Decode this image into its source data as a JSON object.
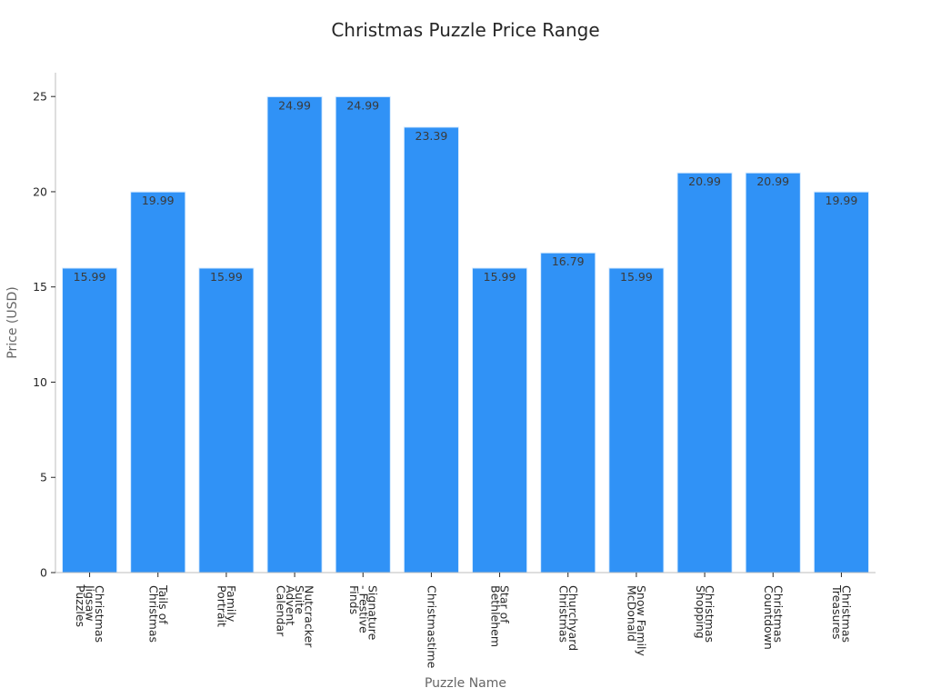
{
  "chart_data": {
    "type": "bar",
    "title": "Christmas Puzzle Price Range",
    "xlabel": "Puzzle Name",
    "ylabel": "Price (USD)",
    "ylim": [
      0,
      26.25
    ],
    "yticks": [
      0,
      5,
      10,
      15,
      20,
      25
    ],
    "grid": false,
    "bar_color": "#3092f6",
    "bar_edge_color": "#d9ecff",
    "categories": [
      [
        "Christmas",
        "Jigsaw",
        "Puzzles"
      ],
      [
        "Tails of",
        "Christmas"
      ],
      [
        "Family",
        "Portrait"
      ],
      [
        "Nutcracker",
        "Suite",
        "Advent",
        "Calendar"
      ],
      [
        "Signature",
        "- Festive",
        "Finds"
      ],
      [
        "Christmastime"
      ],
      [
        "Star of",
        "Bethlehem"
      ],
      [
        "Churchyard",
        "Christmas"
      ],
      [
        "Snow Family",
        "McDonald"
      ],
      [
        "Christmas",
        "Shopping"
      ],
      [
        "Christmas",
        "Countdown"
      ],
      [
        "Christmas",
        "Treasures"
      ]
    ],
    "values": [
      15.99,
      19.99,
      15.99,
      24.99,
      24.99,
      23.39,
      15.99,
      16.79,
      15.99,
      20.99,
      20.99,
      19.99
    ],
    "value_labels": [
      "15.99",
      "19.99",
      "15.99",
      "24.99",
      "24.99",
      "23.39",
      "15.99",
      "16.79",
      "15.99",
      "20.99",
      "20.99",
      "19.99"
    ]
  }
}
